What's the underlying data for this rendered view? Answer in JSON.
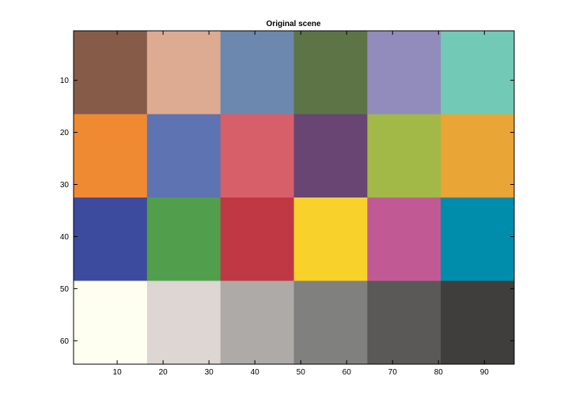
{
  "chart_data": {
    "type": "heatmap",
    "title": "Original scene",
    "xlabel": "",
    "ylabel": "",
    "xlim": [
      0.5,
      96.5
    ],
    "ylim": [
      0.5,
      64.5
    ],
    "y_reversed": true,
    "grid": false,
    "x_ticks": [
      10,
      20,
      30,
      40,
      50,
      60,
      70,
      80,
      90
    ],
    "y_ticks": [
      10,
      20,
      30,
      40,
      50,
      60
    ],
    "x_tick_labels": [
      "10",
      "20",
      "30",
      "40",
      "50",
      "60",
      "70",
      "80",
      "90"
    ],
    "y_tick_labels": [
      "10",
      "20",
      "30",
      "40",
      "50",
      "60"
    ],
    "patch_columns": 6,
    "patch_rows": 4,
    "patch_colors": [
      [
        "#865c48",
        "#dcab92",
        "#6c88ae",
        "#5d7546",
        "#918cbc",
        "#72c9b6"
      ],
      [
        "#ef8a32",
        "#5d73b2",
        "#d75f69",
        "#684573",
        "#a2b947",
        "#e9a536"
      ],
      [
        "#3d4b9e",
        "#519f4d",
        "#bf3843",
        "#f8d12b",
        "#c15a94",
        "#008dac"
      ],
      [
        "#fffff1",
        "#ddd6d3",
        "#adaaa7",
        "#80807e",
        "#5a5957",
        "#403e3d"
      ]
    ]
  }
}
